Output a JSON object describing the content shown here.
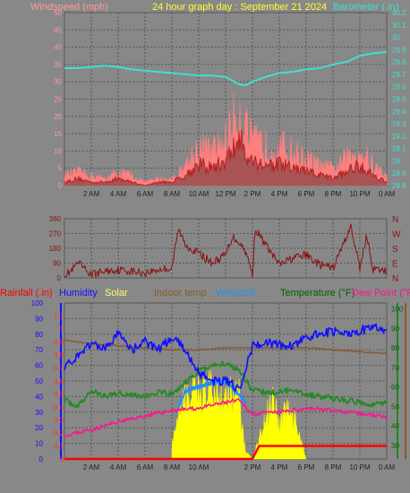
{
  "header": {
    "wind_title": "Windspeed (mph)",
    "date_title": "24 hour graph day : September 21 2024",
    "baro_title": "Barometer (.in)"
  },
  "legend3": {
    "rainfall": "Rainfall (.in)",
    "humidity": "Humidity",
    "solar": "Solar",
    "indoor": "Indoor temp",
    "windchill": "Windchill",
    "temperature": "Temperature (°F)",
    "dewpoint": "Dew Point (°F"
  },
  "colors": {
    "background": "#888888",
    "grid": "#555555",
    "wind_gust": "#ff7f7f",
    "wind_avg": "#b22222",
    "barometer": "#40e0d0",
    "direction": "#8b1010",
    "rain": "#ff0000",
    "humidity": "#1010ff",
    "solar": "#ffff00",
    "indoor": "#8b5a2b",
    "windchill": "#1e90ff",
    "temperature": "#228b22",
    "dewpoint": "#ff1493"
  },
  "chart_data": [
    {
      "type": "line",
      "title": "24 hour graph day : September 21 2024",
      "x_ticks": [
        "2 AM",
        "4 AM",
        "6 AM",
        "8 AM",
        "10 AM",
        "12 PM",
        "2 PM",
        "4 PM",
        "6 PM",
        "8 PM",
        "10 PM",
        "0 AM"
      ],
      "y_left": {
        "label": "Windspeed (mph)",
        "ticks": [
          "0",
          "5",
          "10",
          "15",
          "20",
          "25",
          "30",
          "35",
          "40",
          "45",
          "50"
        ],
        "range": [
          0,
          50
        ]
      },
      "y_right": {
        "label": "Barometer (.in)",
        "ticks": [
          "28.8",
          "28.9",
          "29",
          "29.1",
          "29.2",
          "29.3",
          "29.4",
          "29.5",
          "29.6",
          "29.7",
          "29.8",
          "29.9",
          "30",
          "30.1",
          "30.2"
        ],
        "range": [
          28.8,
          30.2
        ]
      },
      "grid": true,
      "series": [
        {
          "name": "Windspeed (mph)",
          "axis": "left",
          "hour": [
            0,
            1,
            2,
            3,
            4,
            5,
            6,
            7,
            8,
            9,
            10,
            11,
            12,
            13,
            14,
            15,
            16,
            17,
            18,
            19,
            20,
            21,
            22,
            23,
            24
          ],
          "gust": [
            3,
            4,
            3,
            2,
            4,
            3,
            1,
            2,
            2,
            6,
            12,
            10,
            14,
            23,
            13,
            12,
            12,
            10,
            8,
            6,
            5,
            8,
            11,
            6,
            3
          ],
          "avg": [
            1,
            2,
            1,
            1,
            2,
            1,
            0,
            1,
            1,
            3,
            6,
            5,
            7,
            13,
            7,
            6,
            6,
            5,
            4,
            3,
            2,
            4,
            6,
            3,
            1
          ]
        },
        {
          "name": "Barometer (.in)",
          "axis": "right",
          "hour": [
            0,
            1,
            2,
            3,
            4,
            5,
            6,
            7,
            8,
            9,
            10,
            11,
            12,
            13,
            13.5,
            14,
            15,
            16,
            17,
            18,
            19,
            20,
            21,
            22,
            23,
            24
          ],
          "values": [
            29.75,
            29.75,
            29.76,
            29.77,
            29.76,
            29.74,
            29.73,
            29.72,
            29.71,
            29.7,
            29.69,
            29.69,
            29.68,
            29.62,
            29.61,
            29.64,
            29.68,
            29.71,
            29.72,
            29.74,
            29.75,
            29.78,
            29.8,
            29.85,
            29.87,
            29.88
          ]
        }
      ]
    },
    {
      "type": "scatter",
      "title": "",
      "y_left": {
        "ticks": [
          "0",
          "90",
          "180",
          "270",
          "360"
        ],
        "range": [
          0,
          360
        ]
      },
      "y_right": {
        "ticks": [
          "N",
          "E",
          "S",
          "W",
          "N"
        ]
      },
      "grid": true,
      "series": [
        {
          "name": "Wind direction",
          "hour": [
            0,
            0.5,
            1,
            2,
            3,
            4,
            5,
            6,
            7,
            8,
            8.5,
            9,
            10,
            11,
            12,
            12.5,
            13,
            13.5,
            14,
            14.2,
            15,
            16,
            17,
            18,
            19,
            20,
            21,
            21.3,
            22,
            22.5,
            23,
            24
          ],
          "values": [
            20,
            40,
            90,
            20,
            40,
            50,
            40,
            30,
            50,
            60,
            300,
            200,
            150,
            90,
            140,
            250,
            220,
            160,
            20,
            300,
            200,
            80,
            120,
            140,
            80,
            60,
            250,
            320,
            60,
            260,
            50,
            40
          ]
        }
      ]
    },
    {
      "type": "line",
      "title": "",
      "x_ticks": [
        "2 AM",
        "4 AM",
        "6 AM",
        "8 AM",
        "10 AM",
        "2 PM",
        "4 PM",
        "6 PM",
        "8 PM",
        "10 PM",
        "0 AM"
      ],
      "y_left": {
        "label": "Humidity",
        "ticks": [
          "0",
          "10",
          "20",
          "30",
          "40",
          "50",
          "60",
          "70",
          "80",
          "90",
          "100"
        ],
        "range": [
          0,
          100
        ]
      },
      "y_rain": {
        "label": "Rainfall (.in)",
        "ticks": [
          "0",
          "0.1",
          "0.2",
          "0.3",
          "0.4",
          "0.5",
          "0.6",
          "0.7",
          "0.8",
          "0.9",
          "1",
          "1.1"
        ],
        "range": [
          0,
          1.2
        ]
      },
      "y_right": {
        "label": "Temperature (°F)",
        "ticks": [
          "30",
          "40",
          "50",
          "60",
          "70",
          "80",
          "90",
          "100"
        ],
        "range": [
          23,
          103
        ]
      },
      "grid": true,
      "series": [
        {
          "name": "Humidity",
          "axis": "left",
          "hour": [
            0,
            1,
            2,
            3,
            4,
            5,
            6,
            7,
            8,
            9,
            10,
            11,
            12,
            13,
            14,
            15,
            16,
            17,
            18,
            19,
            20,
            21,
            22,
            23,
            24
          ],
          "values": [
            60,
            65,
            75,
            70,
            80,
            70,
            75,
            70,
            78,
            70,
            55,
            50,
            50,
            45,
            72,
            75,
            73,
            72,
            78,
            80,
            82,
            80,
            82,
            85,
            83
          ]
        },
        {
          "name": "Solar",
          "axis": "left",
          "hour": [
            8,
            9,
            10,
            11,
            12,
            13,
            13.5,
            14,
            15,
            15.5,
            16,
            16.5,
            17,
            17.5,
            18
          ],
          "values": [
            10,
            45,
            48,
            50,
            48,
            45,
            5,
            0,
            30,
            48,
            25,
            40,
            30,
            20,
            0
          ]
        },
        {
          "name": "Indoor temp",
          "axis": "right",
          "hour": [
            0,
            2,
            4,
            6,
            8,
            10,
            12,
            13,
            14,
            16,
            18,
            20,
            22,
            24
          ],
          "values": [
            84,
            82,
            81,
            80,
            79,
            79,
            80,
            80,
            80,
            80,
            80,
            79,
            78,
            77
          ]
        },
        {
          "name": "Windchill",
          "axis": "right",
          "hour": [
            8.5,
            9,
            10,
            11,
            12,
            13,
            13.5
          ],
          "values": [
            50,
            58,
            60,
            62,
            63,
            56,
            52
          ]
        },
        {
          "name": "Temperature (°F)",
          "axis": "right",
          "hour": [
            0,
            1,
            2,
            3,
            4,
            5,
            6,
            7,
            8,
            9,
            10,
            11,
            12,
            13,
            14,
            15,
            16,
            17,
            18,
            19,
            20,
            21,
            22,
            23,
            24
          ],
          "values": [
            53,
            50,
            58,
            55,
            57,
            56,
            55,
            57,
            56,
            62,
            68,
            71,
            72,
            69,
            58,
            57,
            57,
            59,
            56,
            55,
            54,
            53,
            52,
            51,
            52
          ]
        },
        {
          "name": "Dew Point (°F",
          "axis": "right",
          "hour": [
            0,
            2,
            4,
            6,
            8,
            10,
            12,
            13,
            14,
            16,
            18,
            20,
            22,
            24
          ],
          "values": [
            35,
            38,
            42,
            45,
            48,
            49,
            52,
            53,
            46,
            47,
            49,
            48,
            46,
            45
          ]
        },
        {
          "name": "Rainfall (.in)",
          "axis": "rain",
          "hour": [
            0,
            14,
            14.5,
            24
          ],
          "values": [
            0,
            0,
            0.1,
            0.1
          ]
        }
      ]
    }
  ]
}
